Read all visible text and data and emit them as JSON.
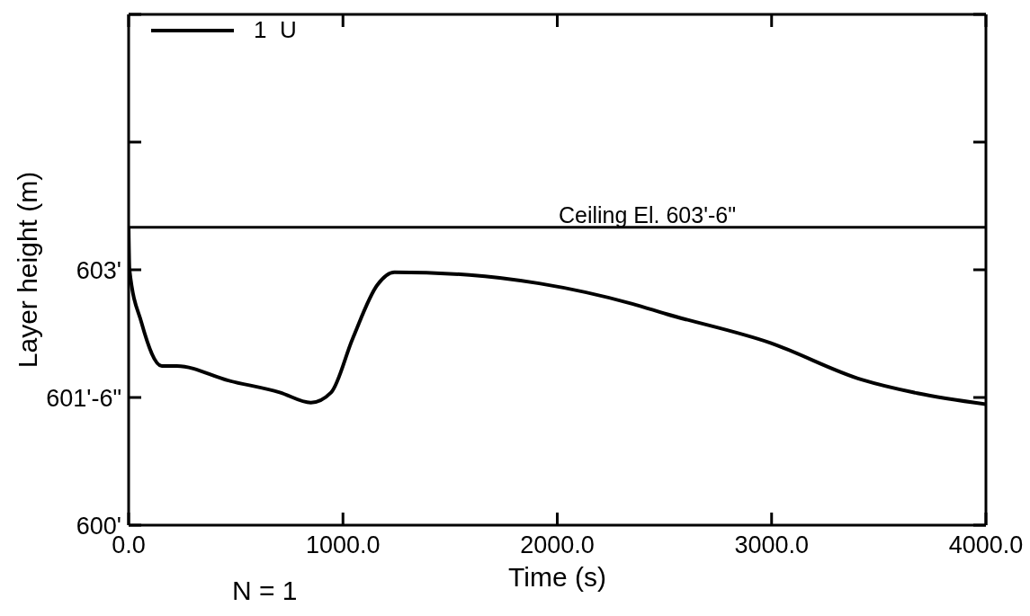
{
  "chart_data": {
    "type": "line",
    "xlabel": "Time  (s)",
    "ylabel": "Layer height (m)",
    "x": [
      0,
      4,
      60,
      155,
      225,
      465,
      705,
      850,
      945,
      1045,
      1160,
      1240,
      1590,
      1915,
      2350,
      2510,
      2995,
      3420,
      3680,
      4000
    ],
    "series": [
      {
        "name": "1  U",
        "color": "#000000",
        "values": [
          603.5,
          603.0,
          602.38,
          601.87,
          601.87,
          601.7,
          601.56,
          601.44,
          601.56,
          602.19,
          602.82,
          602.97,
          602.94,
          602.84,
          602.6,
          602.48,
          602.14,
          601.71,
          601.55,
          601.42
        ]
      }
    ],
    "xlim": [
      0,
      4000
    ],
    "xticks": [
      {
        "value": 0,
        "label": "0.0"
      },
      {
        "value": 1000,
        "label": "1000.0"
      },
      {
        "value": 2000,
        "label": "2000.0"
      },
      {
        "value": 3000,
        "label": "3000.0"
      },
      {
        "value": 4000,
        "label": "4000.0"
      }
    ],
    "ylim": [
      600,
      606
    ],
    "yticks": [
      {
        "value": 600,
        "label": "600'"
      },
      {
        "value": 601.5,
        "label": "601'-6\""
      },
      {
        "value": 603,
        "label": "603'"
      },
      {
        "value": 604.5,
        "label": null
      },
      {
        "value": 606,
        "label": null
      }
    ],
    "ref_lines": [
      {
        "axis": "y",
        "value": 603.5,
        "label": "Ceiling El. 603'-6\"",
        "color": "#000000"
      }
    ],
    "annotations": [
      "N = 1"
    ],
    "legend": "top left",
    "grid": false,
    "marker": "none",
    "line_style": "solid"
  }
}
